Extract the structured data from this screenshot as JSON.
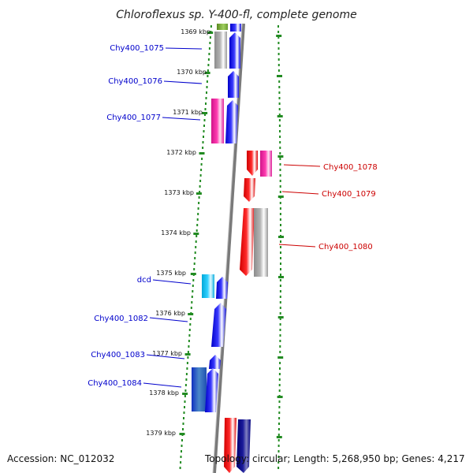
{
  "title": "Chloroflexus sp. Y-400-fl, complete genome",
  "accession": "Accession: NC_012032",
  "topology": "Topology: circular; Length: 5,268,950 bp; Genes: 4,217",
  "colors": {
    "forward_label": "#0000cc",
    "reverse_label": "#cc0000",
    "ruler_tick": "#228b22",
    "backbone": "#808080"
  },
  "kbp_labels": [
    "1369 kbp",
    "1370 kbp",
    "1371 kbp",
    "1372 kbp",
    "1373 kbp",
    "1374 kbp",
    "1375 kbp",
    "1376 kbp",
    "1377 kbp",
    "1378 kbp",
    "1379 kbp"
  ],
  "gene_labels": [
    {
      "text": "Chy400_1075",
      "strand": "forward"
    },
    {
      "text": "Chy400_1076",
      "strand": "forward"
    },
    {
      "text": "Chy400_1077",
      "strand": "forward"
    },
    {
      "text": "Chy400_1078",
      "strand": "reverse"
    },
    {
      "text": "Chy400_1079",
      "strand": "reverse"
    },
    {
      "text": "Chy400_1080",
      "strand": "reverse"
    },
    {
      "text": "dcd",
      "strand": "forward"
    },
    {
      "text": "Chy400_1082",
      "strand": "forward"
    },
    {
      "text": "Chy400_1083",
      "strand": "forward"
    },
    {
      "text": "Chy400_1084",
      "strand": "forward"
    }
  ]
}
